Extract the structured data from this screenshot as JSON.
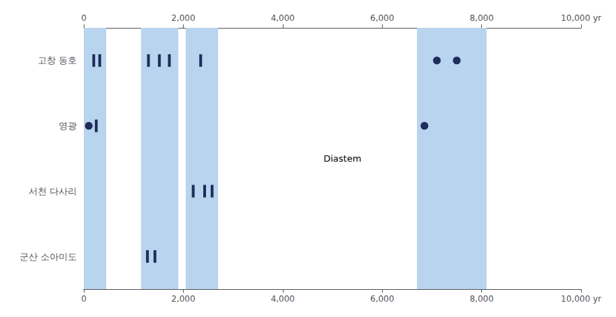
{
  "chart_data": {
    "type": "scatter",
    "categories": [
      "고창 동호",
      "영광",
      "서천 다사리",
      "군산 소아미도"
    ],
    "xlim": [
      0,
      10000
    ],
    "xticks": [
      0,
      {
        "value": 2000,
        "label": "2,000"
      },
      {
        "value": 4000,
        "label": "4,000"
      },
      {
        "value": 6000,
        "label": "6,000"
      },
      {
        "value": 8000,
        "label": "8,000"
      },
      {
        "value": 10000,
        "label": "10,000 yr"
      }
    ],
    "grid": false,
    "series": [
      {
        "marker": "rect",
        "color": "#1e2d5a",
        "values": [
          [
            200,
            "고창 동호"
          ],
          [
            320,
            "고창 동호"
          ],
          [
            1300,
            "고창 동호"
          ],
          [
            1520,
            "고창 동호"
          ],
          [
            1720,
            "고창 동호"
          ],
          [
            2350,
            "고창 동호"
          ],
          [
            250,
            "영광"
          ],
          [
            2200,
            "서천 다사리"
          ],
          [
            2430,
            "서천 다사리"
          ],
          [
            2580,
            "서천 다사리"
          ],
          [
            1280,
            "군산 소아미도"
          ],
          [
            1430,
            "군산 소아미도"
          ]
        ]
      },
      {
        "marker": "circle",
        "color": "#1e2d5a",
        "values": [
          [
            100,
            "영광"
          ],
          [
            7100,
            "고창 동호"
          ],
          [
            7500,
            "고창 동호"
          ],
          [
            6850,
            "영광"
          ]
        ]
      }
    ],
    "shade_bands": [
      [
        0,
        450
      ],
      [
        1150,
        1900
      ],
      [
        2050,
        2700
      ],
      [
        6700,
        8100
      ]
    ],
    "shade_color": "#b8d4ee",
    "annotations": [
      {
        "text": "Diastem",
        "x": 5200
      }
    ]
  }
}
